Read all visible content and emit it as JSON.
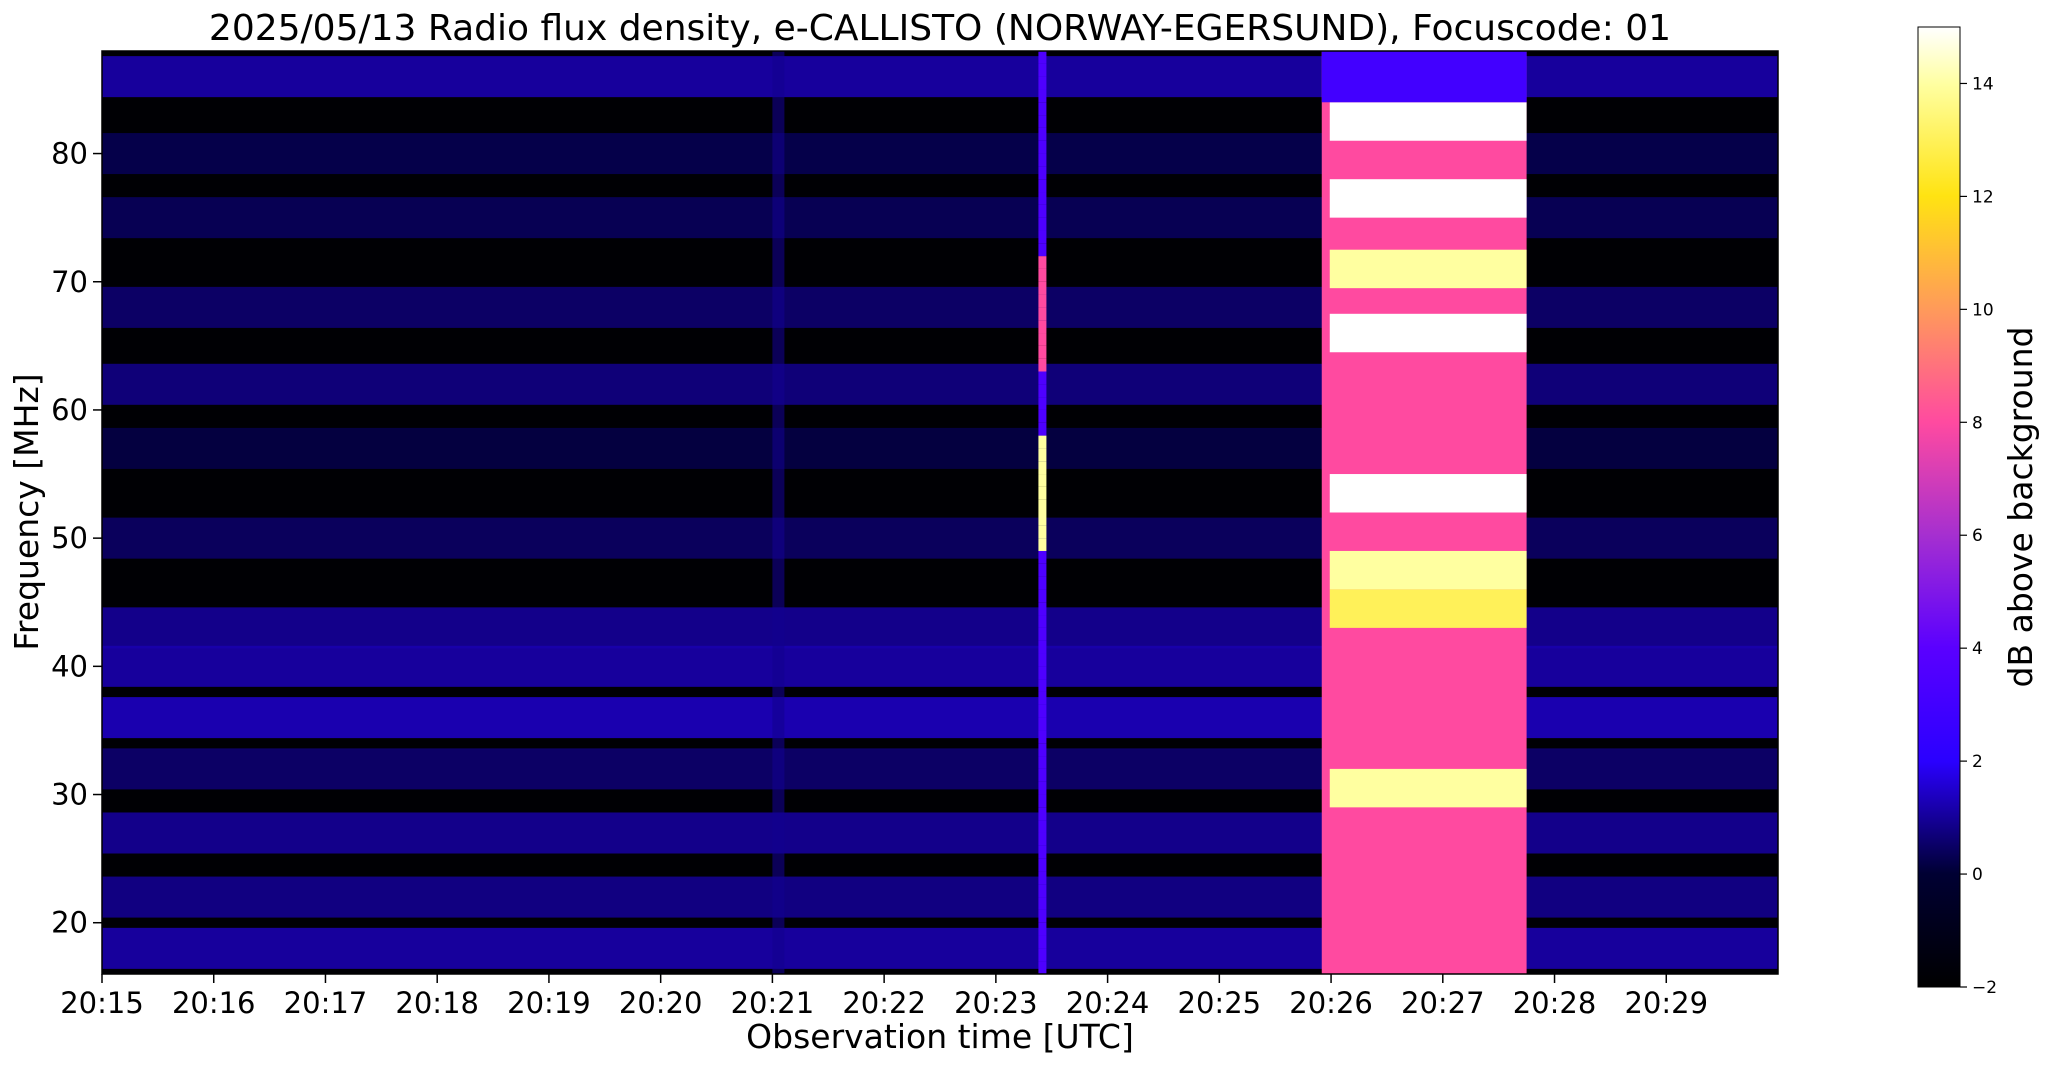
{
  "chart_data": {
    "type": "heatmap",
    "title": "2025/05/13  Radio flux density, e-CALLISTO (NORWAY-EGERSUND), Focuscode: 01",
    "xlabel": "Observation time [UTC]",
    "ylabel": "Frequency [MHz]",
    "xlim": [
      "20:15",
      "20:30"
    ],
    "ylim": [
      16,
      88
    ],
    "x_ticks": [
      "20:15",
      "20:16",
      "20:17",
      "20:18",
      "20:19",
      "20:20",
      "20:21",
      "20:22",
      "20:23",
      "20:24",
      "20:25",
      "20:26",
      "20:27",
      "20:28",
      "20:29"
    ],
    "y_ticks": [
      20,
      30,
      40,
      50,
      60,
      70,
      80
    ],
    "colorbar": {
      "label": "dB above background",
      "range": [
        -2,
        15
      ],
      "ticks": [
        -2,
        0,
        2,
        4,
        6,
        8,
        10,
        12,
        14
      ],
      "colormap": "gnuplot2"
    },
    "features": [
      {
        "kind": "burst",
        "start": "20:25:55",
        "end": "20:27:45",
        "freq_range": [
          16,
          88
        ],
        "peak_db": 15
      },
      {
        "kind": "spike",
        "time": "20:23:25",
        "freq_range": [
          16,
          88
        ],
        "peak_db": 14
      },
      {
        "kind": "edge",
        "time": "20:21:00",
        "freq_range": [
          16,
          88
        ],
        "peak_db": 2
      }
    ],
    "bright_bands_mhz": [
      {
        "freq": 82.5,
        "db": 15
      },
      {
        "freq": 76.5,
        "db": 15
      },
      {
        "freq": 71,
        "db": 14
      },
      {
        "freq": 66,
        "db": 15
      },
      {
        "freq": 53.5,
        "db": 15
      },
      {
        "freq": 47.5,
        "db": 14
      },
      {
        "freq": 44.5,
        "db": 13
      },
      {
        "freq": 30.5,
        "db": 14
      }
    ]
  }
}
